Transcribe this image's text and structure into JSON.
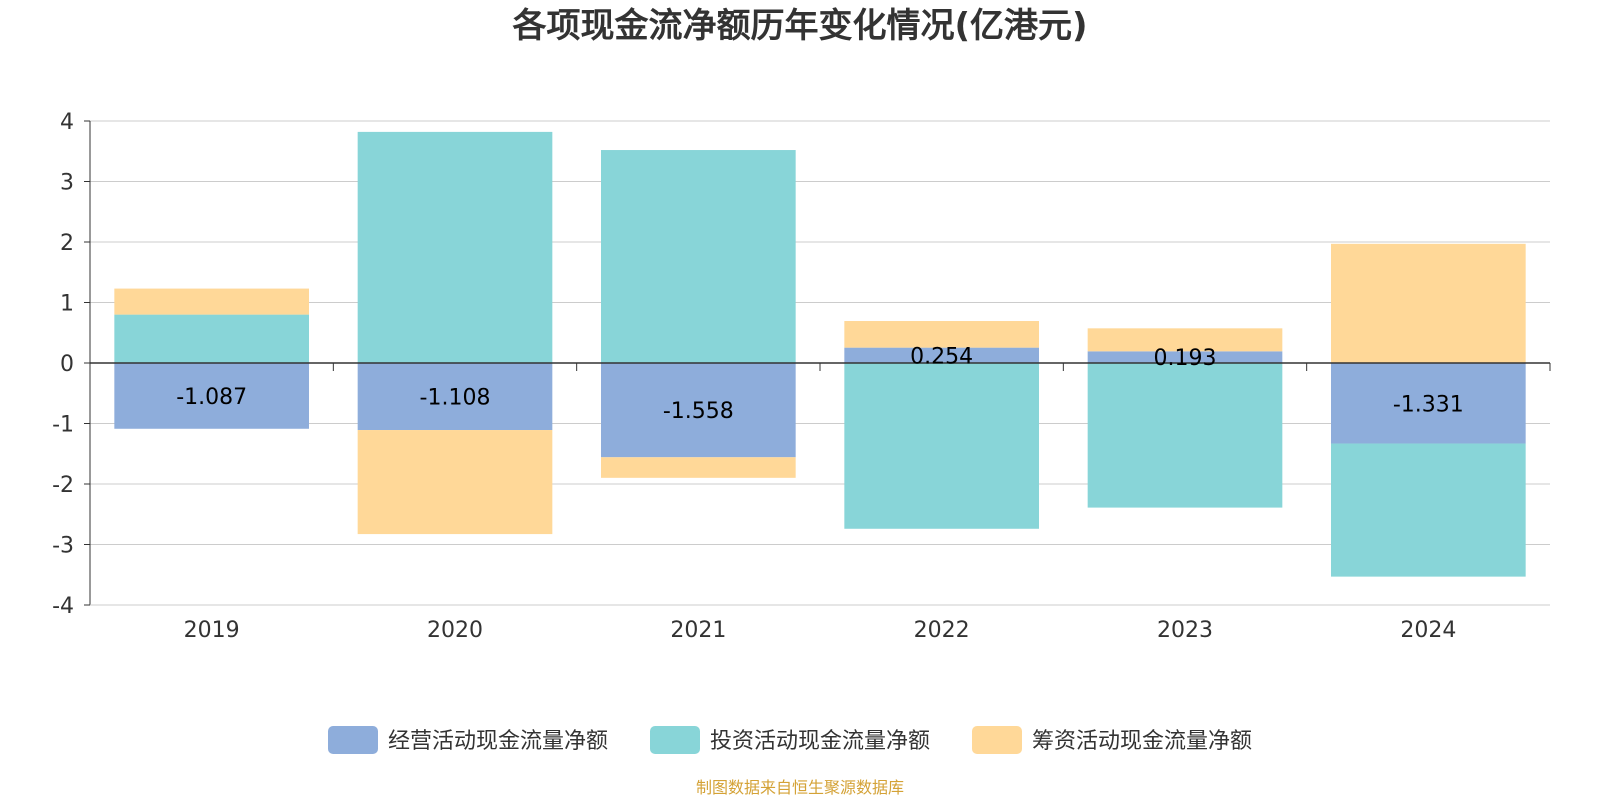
{
  "chart_data": {
    "type": "bar",
    "stacked": true,
    "title": "各项现金流净额历年变化情况(亿港元)",
    "xlabel": "",
    "ylabel": "",
    "categories": [
      "2019",
      "2020",
      "2021",
      "2022",
      "2023",
      "2024"
    ],
    "ylim": [
      -4,
      4
    ],
    "yticks": [
      4,
      3,
      2,
      1,
      0,
      -1,
      -2,
      -3,
      -4
    ],
    "grid": true,
    "legend_position": "bottom",
    "series": [
      {
        "name": "经营活动现金流量净额",
        "color": "#8EADDB",
        "values": [
          -1.087,
          -1.108,
          -1.558,
          0.254,
          0.193,
          -1.331
        ],
        "labels": [
          "-1.087",
          "-1.108",
          "-1.558",
          "0.254",
          "0.193",
          "-1.331"
        ]
      },
      {
        "name": "投资活动现金流量净额",
        "color": "#88D5D8",
        "values": [
          0.8,
          3.82,
          3.52,
          -2.74,
          -2.39,
          -2.2
        ]
      },
      {
        "name": "筹资活动现金流量净额",
        "color": "#FFD898",
        "values": [
          0.43,
          -1.72,
          -0.34,
          0.44,
          0.38,
          1.97
        ]
      }
    ]
  },
  "source": {
    "text": "制图数据来自恒生聚源数据库",
    "color": "#D4A236"
  }
}
